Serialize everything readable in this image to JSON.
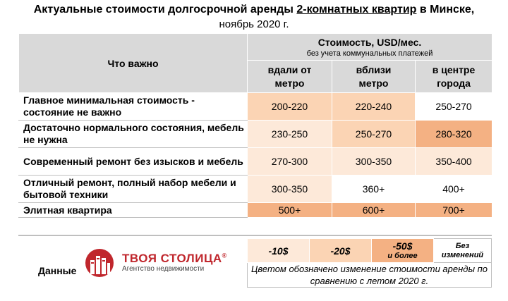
{
  "header": {
    "title_prefix": "Актуальные стоимости долгосрочной аренды ",
    "title_highlight": "2-комнатных квартир",
    "title_suffix": " в Минске,",
    "subtitle": "ноябрь 2020 г."
  },
  "table": {
    "col_what": "Что важно",
    "cost_header": "Стоимость, USD/мес.",
    "cost_sub": "без учета коммунальных платежей",
    "columns": [
      "вдали от метро",
      "вблизи метро",
      "в центре города"
    ],
    "rows": [
      {
        "label": "Главное минимальная стоимость - состояние не важно",
        "values": [
          "200-220",
          "220-240",
          "250-270"
        ]
      },
      {
        "label": "Достаточно нормального состояния, мебель не нужна",
        "values": [
          "230-250",
          "250-270",
          "280-320"
        ]
      },
      {
        "label": "Современный ремонт без изысков и мебель",
        "values": [
          "270-300",
          "300-350",
          "350-400"
        ]
      },
      {
        "label": "Отличный ремонт, полный набор мебели и бытовой техники",
        "values": [
          "300-350",
          "360+",
          "400+"
        ]
      },
      {
        "label": "Элитная квартира",
        "values": [
          "500+",
          "600+",
          "700+"
        ]
      }
    ]
  },
  "legend": {
    "items": [
      "-10$",
      "-20$",
      "-50$",
      "и более",
      "Без изменений"
    ],
    "note": "Цветом обозначено изменение стоимости аренды по сравнению с летом 2020 г."
  },
  "footer": {
    "data_label": "Данные",
    "logo_name": "ТВОЯ СТОЛИЦА",
    "logo_reg": "®",
    "logo_sub": "Агентство недвижимости"
  },
  "colors": {
    "minus10": "#fde9d9",
    "minus20": "#fbd4b4",
    "minus50": "#f4b183",
    "header_gray": "#d9d9d9",
    "brand": "#c0272d"
  }
}
